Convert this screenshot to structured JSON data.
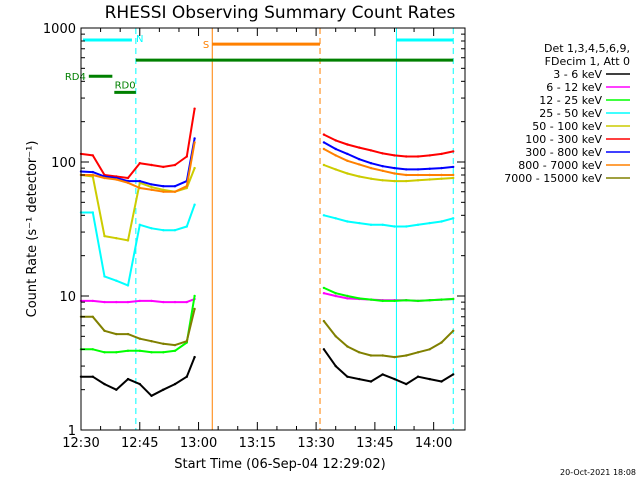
{
  "chart_data": {
    "type": "line",
    "title": "RHESSI Observing Summary Count Rates",
    "xlabel": "Start Time (06-Sep-04 12:29:02)",
    "ylabel": "Count Rate (s⁻¹ detector⁻¹)",
    "yscale": "log",
    "ylim": [
      1,
      1000
    ],
    "xlim_minutes": [
      0,
      98
    ],
    "x_ticks": [
      {
        "label": "12:30",
        "minutes": 0
      },
      {
        "label": "12:45",
        "minutes": 15
      },
      {
        "label": "13:00",
        "minutes": 30
      },
      {
        "label": "13:15",
        "minutes": 45
      },
      {
        "label": "13:30",
        "minutes": 60
      },
      {
        "label": "13:45",
        "minutes": 75
      },
      {
        "label": "14:00",
        "minutes": 90
      }
    ],
    "y_ticks": [
      {
        "label": "1",
        "value": 1
      },
      {
        "label": "10",
        "value": 10
      },
      {
        "label": "100",
        "value": 100
      },
      {
        "label": "1000",
        "value": 1000
      }
    ],
    "legend_header": [
      "Det 1,3,4,5,6,9,",
      "FDecim 1, Att 0"
    ],
    "legend_position": "right",
    "series": [
      {
        "name": "3 - 6 keV",
        "color": "#000000",
        "segments": [
          {
            "x": [
              0,
              3,
              6,
              9,
              12,
              15,
              18,
              21,
              24,
              27,
              29
            ],
            "y": [
              2.5,
              2.5,
              2.2,
              2.0,
              2.4,
              2.2,
              1.8,
              2.0,
              2.2,
              2.5,
              3.5
            ]
          },
          {
            "x": [
              62,
              65,
              68,
              71,
              74,
              77,
              80,
              83,
              86,
              89,
              92,
              95
            ],
            "y": [
              4.0,
              3.0,
              2.5,
              2.4,
              2.3,
              2.6,
              2.4,
              2.2,
              2.5,
              2.4,
              2.3,
              2.6
            ]
          }
        ]
      },
      {
        "name": "6 - 12 keV",
        "color": "#ff00ff",
        "segments": [
          {
            "x": [
              0,
              3,
              6,
              9,
              12,
              15,
              18,
              21,
              24,
              27,
              29
            ],
            "y": [
              9.2,
              9.2,
              9.0,
              9.0,
              9.0,
              9.2,
              9.2,
              9.0,
              9.0,
              9.0,
              9.5
            ]
          },
          {
            "x": [
              62,
              65,
              68,
              71,
              74,
              77,
              80,
              83,
              86,
              89,
              92,
              95
            ],
            "y": [
              10.5,
              10.0,
              9.6,
              9.5,
              9.4,
              9.3,
              9.3,
              9.3,
              9.2,
              9.3,
              9.4,
              9.5
            ]
          }
        ]
      },
      {
        "name": "12 - 25 keV",
        "color": "#00ff00",
        "segments": [
          {
            "x": [
              0,
              3,
              6,
              9,
              12,
              15,
              18,
              21,
              24,
              27,
              29
            ],
            "y": [
              4.0,
              4.0,
              3.8,
              3.8,
              3.9,
              3.9,
              3.8,
              3.8,
              3.9,
              4.5,
              10.0
            ]
          },
          {
            "x": [
              62,
              65,
              68,
              71,
              74,
              77,
              80,
              83,
              86,
              89,
              92,
              95
            ],
            "y": [
              11.5,
              10.5,
              10.0,
              9.6,
              9.4,
              9.2,
              9.2,
              9.3,
              9.2,
              9.3,
              9.4,
              9.5
            ]
          }
        ]
      },
      {
        "name": "25 - 50 keV",
        "color": "#00ffff",
        "segments": [
          {
            "x": [
              0,
              3,
              6,
              9,
              12,
              15,
              18,
              21,
              24,
              27,
              29
            ],
            "y": [
              42,
              42,
              14,
              13,
              12,
              34,
              32,
              31,
              31,
              33,
              48
            ]
          },
          {
            "x": [
              62,
              65,
              68,
              71,
              74,
              77,
              80,
              83,
              86,
              89,
              92,
              95
            ],
            "y": [
              40,
              38,
              36,
              35,
              34,
              34,
              33,
              33,
              34,
              35,
              36,
              38
            ]
          }
        ]
      },
      {
        "name": "50 - 100 keV",
        "color": "#cccc00",
        "segments": [
          {
            "x": [
              0,
              3,
              6,
              9,
              12,
              15,
              18,
              21,
              24,
              27,
              29
            ],
            "y": [
              80,
              78,
              28,
              27,
              26,
              70,
              65,
              62,
              60,
              64,
              90
            ]
          },
          {
            "x": [
              62,
              65,
              68,
              71,
              74,
              77,
              80,
              83,
              86,
              89,
              92,
              95
            ],
            "y": [
              95,
              88,
              82,
              78,
              75,
              73,
              72,
              72,
              73,
              74,
              75,
              76
            ]
          }
        ]
      },
      {
        "name": "100 - 300 keV",
        "color": "#ff0000",
        "segments": [
          {
            "x": [
              0,
              3,
              6,
              9,
              12,
              15,
              18,
              21,
              24,
              27,
              29
            ],
            "y": [
              115,
              112,
              80,
              78,
              76,
              98,
              95,
              92,
              95,
              110,
              250
            ]
          },
          {
            "x": [
              62,
              65,
              68,
              71,
              74,
              77,
              80,
              83,
              86,
              89,
              92,
              95
            ],
            "y": [
              160,
              145,
              135,
              128,
              122,
              116,
              112,
              110,
              110,
              112,
              115,
              120
            ]
          }
        ]
      },
      {
        "name": "300 - 800 keV",
        "color": "#0000ff",
        "segments": [
          {
            "x": [
              0,
              3,
              6,
              9,
              12,
              15,
              18,
              21,
              24,
              27,
              29
            ],
            "y": [
              85,
              84,
              78,
              76,
              72,
              72,
              68,
              66,
              66,
              72,
              150
            ]
          },
          {
            "x": [
              62,
              65,
              68,
              71,
              74,
              77,
              80,
              83,
              86,
              89,
              92,
              95
            ],
            "y": [
              140,
              125,
              115,
              105,
              98,
              93,
              90,
              88,
              88,
              89,
              90,
              92
            ]
          }
        ]
      },
      {
        "name": "800 - 7000 keV",
        "color": "#ff8000",
        "segments": [
          {
            "x": [
              0,
              3,
              6,
              9,
              12,
              15,
              18,
              21,
              24,
              27,
              29
            ],
            "y": [
              80,
              80,
              76,
              74,
              70,
              64,
              62,
              60,
              60,
              66,
              140
            ]
          },
          {
            "x": [
              62,
              65,
              68,
              71,
              74,
              77,
              80,
              83,
              86,
              89,
              92,
              95
            ],
            "y": [
              125,
              112,
              102,
              96,
              90,
              86,
              82,
              80,
              80,
              80,
              80,
              80
            ]
          }
        ]
      },
      {
        "name": "7000 - 15000 keV",
        "color": "#808000",
        "segments": [
          {
            "x": [
              0,
              3,
              6,
              9,
              12,
              15,
              18,
              21,
              24,
              27,
              29
            ],
            "y": [
              7.0,
              7.0,
              5.5,
              5.2,
              5.2,
              4.8,
              4.6,
              4.4,
              4.3,
              4.6,
              8.0
            ]
          },
          {
            "x": [
              62,
              65,
              68,
              71,
              74,
              77,
              80,
              83,
              86,
              89,
              92,
              95
            ],
            "y": [
              6.5,
              5.0,
              4.2,
              3.8,
              3.6,
              3.6,
              3.5,
              3.6,
              3.8,
              4.0,
              4.5,
              5.5
            ]
          }
        ]
      }
    ],
    "vertical_markers": [
      {
        "minutes": 0,
        "color": "#00ffff",
        "style": "dashed"
      },
      {
        "minutes": 14,
        "color": "#00ffff",
        "style": "dashed"
      },
      {
        "minutes": 33.5,
        "color": "#ff8000",
        "style": "solid"
      },
      {
        "minutes": 61,
        "color": "#ff8000",
        "style": "dashed"
      },
      {
        "minutes": 80.5,
        "color": "#00ffff",
        "style": "solid"
      },
      {
        "minutes": 95,
        "color": "#00ffff",
        "style": "dashed"
      }
    ],
    "state_bars": [
      {
        "label": "RD4",
        "label_at": "left",
        "color": "#008000",
        "level": 0.12,
        "from": 2,
        "to": 8
      },
      {
        "label": "RD0",
        "label_at": "above",
        "color": "#008000",
        "level": 0.16,
        "from": 8.5,
        "to": 14
      },
      {
        "label": "",
        "label_at": "none",
        "color": "#008000",
        "level": 0.08,
        "from": 14,
        "to": 95
      },
      {
        "label": "N",
        "label_at": "right",
        "color": "#00ffff",
        "level": 0.03,
        "from": 0.5,
        "to": 13
      },
      {
        "label": "",
        "label_at": "none",
        "color": "#00ffff",
        "level": 0.03,
        "from": 80.5,
        "to": 95
      },
      {
        "label": "S",
        "label_at": "left",
        "color": "#ff8000",
        "level": 0.04,
        "from": 33.5,
        "to": 61
      }
    ],
    "footer_date": "20-Oct-2021 18:08"
  }
}
